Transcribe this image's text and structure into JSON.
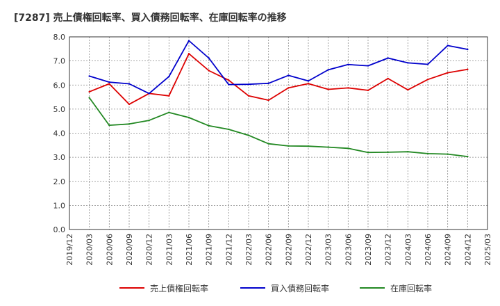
{
  "chart_data": {
    "type": "line",
    "title": "[7287]  売上債権回転率、買入債務回転率、在庫回転率の推移",
    "xlabel": "",
    "ylabel": "",
    "ylim": [
      0,
      8
    ],
    "y_ticks": [
      "0.0",
      "1.0",
      "2.0",
      "3.0",
      "4.0",
      "5.0",
      "6.0",
      "7.0",
      "8.0"
    ],
    "x_ticks": [
      "2019/12",
      "2020/03",
      "2020/06",
      "2020/09",
      "2020/12",
      "2021/03",
      "2021/06",
      "2021/09",
      "2021/12",
      "2022/03",
      "2022/06",
      "2022/09",
      "2022/12",
      "2023/03",
      "2023/06",
      "2023/09",
      "2023/12",
      "2024/03",
      "2024/06",
      "2024/09",
      "2024/12",
      "2025/03"
    ],
    "grid": true,
    "legend_position": "bottom",
    "series": [
      {
        "name": "売上債権回転率",
        "color": "#dd0000",
        "x": [
          "2020/03",
          "2020/06",
          "2020/09",
          "2020/12",
          "2021/03",
          "2021/06",
          "2021/09",
          "2021/12",
          "2022/03",
          "2022/06",
          "2022/09",
          "2022/12",
          "2023/03",
          "2023/06",
          "2023/09",
          "2023/12",
          "2024/03",
          "2024/06",
          "2024/09",
          "2024/12"
        ],
        "values": [
          5.72,
          6.05,
          5.2,
          5.65,
          5.55,
          7.3,
          6.6,
          6.2,
          5.55,
          5.37,
          5.88,
          6.06,
          5.82,
          5.88,
          5.78,
          6.27,
          5.8,
          6.23,
          6.51,
          6.65
        ]
      },
      {
        "name": "買入債務回転率",
        "color": "#0000cc",
        "x": [
          "2020/03",
          "2020/06",
          "2020/09",
          "2020/12",
          "2021/03",
          "2021/06",
          "2021/09",
          "2021/12",
          "2022/03",
          "2022/06",
          "2022/09",
          "2022/12",
          "2023/03",
          "2023/06",
          "2023/09",
          "2023/12",
          "2024/03",
          "2024/06",
          "2024/09",
          "2024/12"
        ],
        "values": [
          6.37,
          6.12,
          6.05,
          5.65,
          6.35,
          7.84,
          7.12,
          6.02,
          6.03,
          6.07,
          6.4,
          6.17,
          6.63,
          6.85,
          6.8,
          7.12,
          6.92,
          6.86,
          7.64,
          7.48
        ]
      },
      {
        "name": "在庫回転率",
        "color": "#228822",
        "x": [
          "2020/03",
          "2020/06",
          "2020/09",
          "2020/12",
          "2021/03",
          "2021/06",
          "2021/09",
          "2021/12",
          "2022/03",
          "2022/06",
          "2022/09",
          "2022/12",
          "2023/03",
          "2023/06",
          "2023/09",
          "2023/12",
          "2024/03",
          "2024/06",
          "2024/09",
          "2024/12"
        ],
        "values": [
          5.47,
          4.33,
          4.38,
          4.53,
          4.86,
          4.65,
          4.31,
          4.16,
          3.91,
          3.56,
          3.47,
          3.46,
          3.42,
          3.37,
          3.2,
          3.21,
          3.23,
          3.15,
          3.13,
          3.03
        ]
      }
    ]
  }
}
